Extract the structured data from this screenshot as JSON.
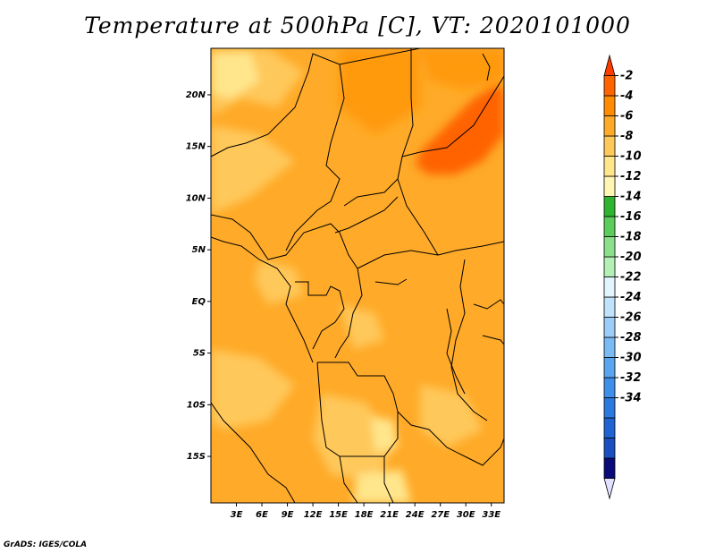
{
  "title": "Temperature at 500hPa [C], VT: 2020101000",
  "credit": "GrADS: IGES/COLA",
  "chart_data": {
    "type": "heatmap",
    "variable": "Temperature at 500hPa",
    "units": "C",
    "valid_time": "2020101000",
    "lon_range": [
      0,
      34.5
    ],
    "lat_range": [
      -19.5,
      24.5
    ],
    "lon_ticks": [
      {
        "value": 3,
        "label": "3E"
      },
      {
        "value": 6,
        "label": "6E"
      },
      {
        "value": 9,
        "label": "9E"
      },
      {
        "value": 12,
        "label": "12E"
      },
      {
        "value": 15,
        "label": "15E"
      },
      {
        "value": 18,
        "label": "18E"
      },
      {
        "value": 21,
        "label": "21E"
      },
      {
        "value": 24,
        "label": "24E"
      },
      {
        "value": 27,
        "label": "27E"
      },
      {
        "value": 30,
        "label": "30E"
      },
      {
        "value": 33,
        "label": "33E"
      }
    ],
    "lat_ticks": [
      {
        "value": 20,
        "label": "20N"
      },
      {
        "value": 15,
        "label": "15N"
      },
      {
        "value": 10,
        "label": "10N"
      },
      {
        "value": 5,
        "label": "5N"
      },
      {
        "value": 0,
        "label": "EQ"
      },
      {
        "value": -5,
        "label": "5S"
      },
      {
        "value": -10,
        "label": "10S"
      },
      {
        "value": -15,
        "label": "15S"
      }
    ],
    "colorbar": {
      "levels": [
        "-2",
        "-4",
        "-6",
        "-8",
        "-10",
        "-12",
        "-14",
        "-16",
        "-18",
        "-20",
        "-22",
        "-24",
        "-26",
        "-28",
        "-30",
        "-32",
        "-34"
      ],
      "colors": [
        "#e0e0ff",
        "#0a0a78",
        "#1a4fc0",
        "#1f64d2",
        "#2a7ae0",
        "#3d8fea",
        "#5aa5f0",
        "#7abaf5",
        "#9ccdf8",
        "#c0e2fb",
        "#e2f4fe",
        "#b4f0b4",
        "#8ce08c",
        "#5ccd5c",
        "#2eb42e",
        "#fff6b4",
        "#ffe68c",
        "#ffc85a",
        "#ffaa28",
        "#ff8c00",
        "#ff6400",
        "#ff3c00"
      ]
    },
    "color_regions": [
      {
        "color": "#ffaa28",
        "desc": "base -6 to -4 C over most of domain"
      },
      {
        "color": "#ff6400",
        "desc": "-4 to -2 C over Sudan (~16N, 24-34E)"
      },
      {
        "color": "#ffc85a",
        "desc": "-8 to -6 C patches"
      },
      {
        "color": "#ffe68c",
        "desc": "-10 to -8 C small patches (Sahara, Angola)"
      }
    ]
  }
}
